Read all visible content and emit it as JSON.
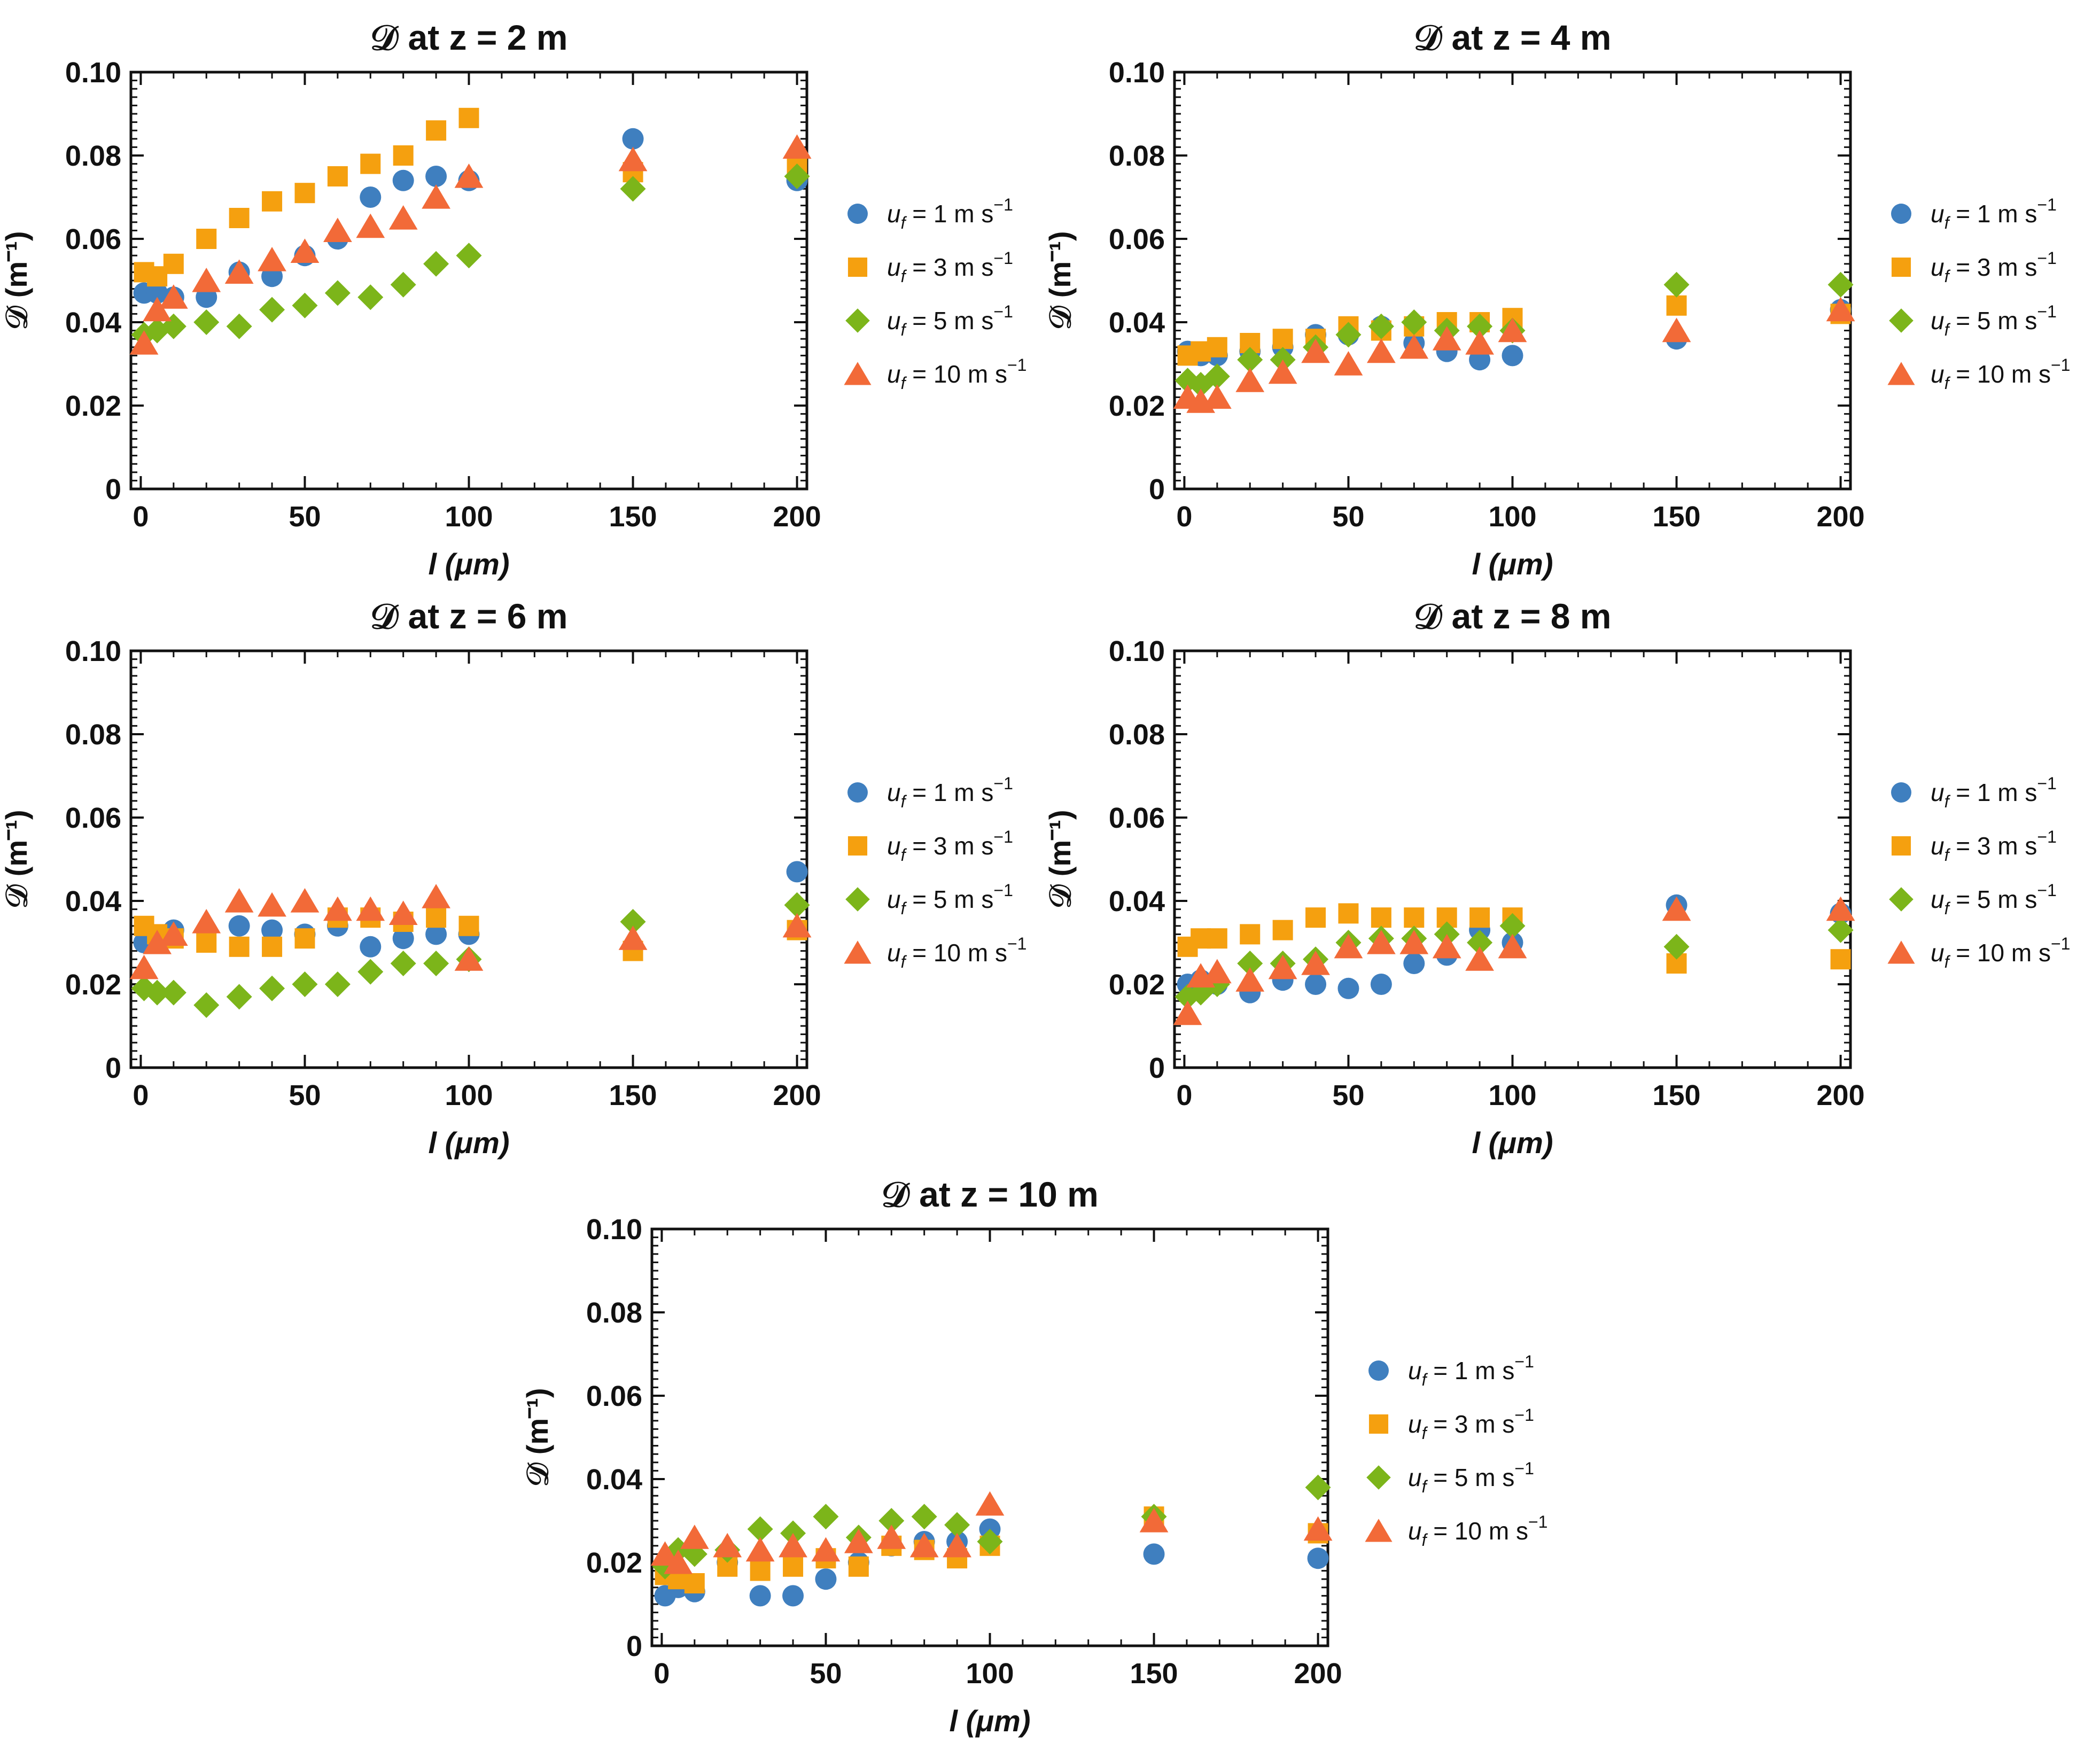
{
  "chart_data": [
    {
      "type": "scatter",
      "title": "𝒟 at z = 2 m",
      "xlabel": "l (μm)",
      "ylabel": "𝒟 (m⁻¹)",
      "xlim": [
        -3,
        203
      ],
      "ylim": [
        0,
        0.1
      ],
      "xticks": [
        0,
        50,
        100,
        150,
        200
      ],
      "yticks": [
        0,
        0.02,
        0.04,
        0.06,
        0.08,
        0.1
      ],
      "ytick_labels": [
        "0",
        "0.02",
        "0.04",
        "0.06",
        "0.08",
        "0.10"
      ],
      "x": [
        1,
        5,
        10,
        20,
        30,
        40,
        50,
        60,
        70,
        80,
        90,
        100,
        150,
        200
      ],
      "series": [
        {
          "name": "uf = 1 m s-1",
          "values": [
            0.047,
            0.047,
            0.046,
            0.046,
            0.052,
            0.051,
            0.056,
            0.06,
            0.07,
            0.074,
            0.075,
            0.074,
            0.084,
            0.074
          ]
        },
        {
          "name": "uf = 3 m s-1",
          "values": [
            0.052,
            0.051,
            0.054,
            0.06,
            0.065,
            0.069,
            0.071,
            0.075,
            0.078,
            0.08,
            0.086,
            0.089,
            0.076,
            0.078
          ]
        },
        {
          "name": "uf = 5 m s-1",
          "values": [
            0.037,
            0.038,
            0.039,
            0.04,
            0.039,
            0.043,
            0.044,
            0.047,
            0.046,
            0.049,
            0.054,
            0.056,
            0.072,
            0.075
          ]
        },
        {
          "name": "uf = 10 m s-1",
          "values": [
            0.035,
            0.043,
            0.046,
            0.05,
            0.052,
            0.055,
            0.057,
            0.062,
            0.063,
            0.065,
            0.07,
            0.075,
            0.079,
            0.082
          ]
        }
      ]
    },
    {
      "type": "scatter",
      "title": "𝒟 at z = 4 m",
      "xlabel": "l (μm)",
      "ylabel": "𝒟 (m⁻¹)",
      "xlim": [
        -3,
        203
      ],
      "ylim": [
        0,
        0.1
      ],
      "xticks": [
        0,
        50,
        100,
        150,
        200
      ],
      "yticks": [
        0,
        0.02,
        0.04,
        0.06,
        0.08,
        0.1
      ],
      "ytick_labels": [
        "0",
        "0.02",
        "0.04",
        "0.06",
        "0.08",
        "0.10"
      ],
      "x": [
        1,
        5,
        10,
        20,
        30,
        40,
        50,
        60,
        70,
        80,
        90,
        100,
        150,
        200
      ],
      "series": [
        {
          "name": "uf = 1 m s-1",
          "values": [
            0.033,
            0.032,
            0.032,
            0.033,
            0.034,
            0.037,
            0.037,
            0.039,
            0.035,
            0.033,
            0.031,
            0.032,
            0.036,
            0.043
          ]
        },
        {
          "name": "uf = 3 m s-1",
          "values": [
            0.032,
            0.033,
            0.034,
            0.035,
            0.036,
            0.036,
            0.039,
            0.038,
            0.039,
            0.04,
            0.04,
            0.041,
            0.044,
            0.042
          ]
        },
        {
          "name": "uf = 5 m s-1",
          "values": [
            0.026,
            0.025,
            0.027,
            0.031,
            0.031,
            0.034,
            0.037,
            0.039,
            0.04,
            0.038,
            0.039,
            0.038,
            0.049,
            0.049
          ]
        },
        {
          "name": "uf = 10 m s-1",
          "values": [
            0.022,
            0.021,
            0.022,
            0.026,
            0.028,
            0.033,
            0.03,
            0.033,
            0.034,
            0.036,
            0.035,
            0.038,
            0.038,
            0.043
          ]
        }
      ]
    },
    {
      "type": "scatter",
      "title": "𝒟 at z = 6 m",
      "xlabel": "l (μm)",
      "ylabel": "𝒟 (m⁻¹)",
      "xlim": [
        -3,
        203
      ],
      "ylim": [
        0,
        0.1
      ],
      "xticks": [
        0,
        50,
        100,
        150,
        200
      ],
      "yticks": [
        0,
        0.02,
        0.04,
        0.06,
        0.08,
        0.1
      ],
      "ytick_labels": [
        "0",
        "0.02",
        "0.04",
        "0.06",
        "0.08",
        "0.10"
      ],
      "x": [
        1,
        5,
        10,
        20,
        30,
        40,
        50,
        60,
        70,
        80,
        90,
        100,
        150,
        200
      ],
      "series": [
        {
          "name": "uf = 1 m s-1",
          "values": [
            0.03,
            0.031,
            0.033,
            0.033,
            0.034,
            0.033,
            0.032,
            0.034,
            0.029,
            0.031,
            0.032,
            0.032,
            0.029,
            0.047
          ]
        },
        {
          "name": "uf = 3 m s-1",
          "values": [
            0.034,
            0.032,
            0.031,
            0.03,
            0.029,
            0.029,
            0.031,
            0.036,
            0.036,
            0.035,
            0.036,
            0.034,
            0.028,
            0.033
          ]
        },
        {
          "name": "uf = 5 m s-1",
          "values": [
            0.019,
            0.018,
            0.018,
            0.015,
            0.017,
            0.019,
            0.02,
            0.02,
            0.023,
            0.025,
            0.025,
            0.026,
            0.035,
            0.039
          ]
        },
        {
          "name": "uf = 10 m s-1",
          "values": [
            0.024,
            0.03,
            0.032,
            0.035,
            0.04,
            0.039,
            0.04,
            0.038,
            0.038,
            0.037,
            0.041,
            0.026,
            0.031,
            0.034
          ]
        }
      ]
    },
    {
      "type": "scatter",
      "title": "𝒟 at z = 8 m",
      "xlabel": "l (μm)",
      "ylabel": "𝒟 (m⁻¹)",
      "xlim": [
        -3,
        203
      ],
      "ylim": [
        0,
        0.1
      ],
      "xticks": [
        0,
        50,
        100,
        150,
        200
      ],
      "yticks": [
        0,
        0.02,
        0.04,
        0.06,
        0.08,
        0.1
      ],
      "ytick_labels": [
        "0",
        "0.02",
        "0.04",
        "0.06",
        "0.08",
        "0.10"
      ],
      "x": [
        1,
        5,
        10,
        20,
        30,
        40,
        50,
        60,
        70,
        80,
        90,
        100,
        150,
        200
      ],
      "series": [
        {
          "name": "uf = 1 m s-1",
          "values": [
            0.02,
            0.021,
            0.02,
            0.018,
            0.021,
            0.02,
            0.019,
            0.02,
            0.025,
            0.027,
            0.033,
            0.03,
            0.039,
            0.037
          ]
        },
        {
          "name": "uf = 3 m s-1",
          "values": [
            0.029,
            0.031,
            0.031,
            0.032,
            0.033,
            0.036,
            0.037,
            0.036,
            0.036,
            0.036,
            0.036,
            0.036,
            0.025,
            0.026
          ]
        },
        {
          "name": "uf = 5 m s-1",
          "values": [
            0.017,
            0.018,
            0.02,
            0.025,
            0.025,
            0.026,
            0.03,
            0.031,
            0.031,
            0.032,
            0.03,
            0.034,
            0.029,
            0.033
          ]
        },
        {
          "name": "uf = 10 m s-1",
          "values": [
            0.013,
            0.022,
            0.023,
            0.021,
            0.024,
            0.025,
            0.029,
            0.03,
            0.03,
            0.029,
            0.026,
            0.029,
            0.038,
            0.038
          ]
        }
      ]
    },
    {
      "type": "scatter",
      "title": "𝒟 at z = 10 m",
      "xlabel": "l (μm)",
      "ylabel": "𝒟 (m⁻¹)",
      "xlim": [
        -3,
        203
      ],
      "ylim": [
        0,
        0.1
      ],
      "xticks": [
        0,
        50,
        100,
        150,
        200
      ],
      "yticks": [
        0,
        0.02,
        0.04,
        0.06,
        0.08,
        0.1
      ],
      "ytick_labels": [
        "0",
        "0.02",
        "0.04",
        "0.06",
        "0.08",
        "0.10"
      ],
      "x": [
        1,
        5,
        10,
        20,
        30,
        40,
        50,
        60,
        70,
        80,
        90,
        100,
        150,
        200
      ],
      "series": [
        {
          "name": "uf = 1 m s-1",
          "values": [
            0.012,
            0.014,
            0.013,
            0.02,
            0.012,
            0.012,
            0.016,
            0.02,
            0.024,
            0.025,
            0.025,
            0.028,
            0.022,
            0.021
          ]
        },
        {
          "name": "uf = 3 m s-1",
          "values": [
            0.017,
            0.016,
            0.015,
            0.019,
            0.018,
            0.019,
            0.021,
            0.019,
            0.024,
            0.023,
            0.021,
            0.024,
            0.031,
            0.027
          ]
        },
        {
          "name": "uf = 5 m s-1",
          "values": [
            0.019,
            0.023,
            0.022,
            0.023,
            0.028,
            0.027,
            0.031,
            0.026,
            0.03,
            0.031,
            0.029,
            0.025,
            0.031,
            0.038
          ]
        },
        {
          "name": "uf = 10 m s-1",
          "values": [
            0.022,
            0.02,
            0.026,
            0.024,
            0.023,
            0.024,
            0.023,
            0.025,
            0.026,
            0.024,
            0.024,
            0.034,
            0.03,
            0.028
          ]
        }
      ]
    }
  ],
  "legend": {
    "entries": [
      {
        "var": "u",
        "sub": "f",
        "text": " = 1 m s",
        "sup": "−1"
      },
      {
        "var": "u",
        "sub": "f",
        "text": " = 3 m s",
        "sup": "−1"
      },
      {
        "var": "u",
        "sub": "f",
        "text": " = 5 m s",
        "sup": "−1"
      },
      {
        "var": "u",
        "sub": "f",
        "text": " = 10 m s",
        "sup": "−1"
      }
    ]
  },
  "colors": {
    "series": [
      "#3f7fbf",
      "#f5a00f",
      "#7cb51a",
      "#f26a38"
    ],
    "axis": "#111111"
  },
  "markers": [
    "circle",
    "square",
    "diamond",
    "triangle"
  ]
}
